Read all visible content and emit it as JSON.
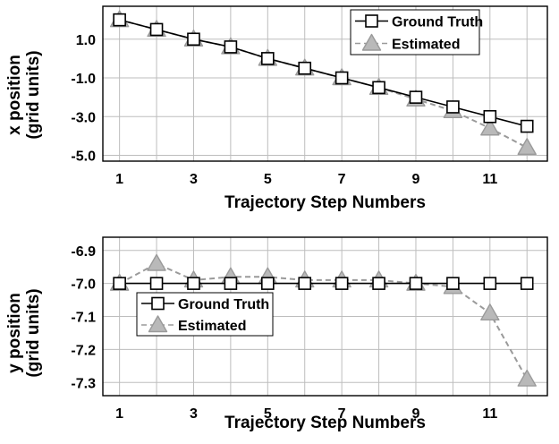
{
  "chart_data": [
    {
      "type": "line",
      "xlabel": "Trajectory Step Numbers",
      "ylabel": [
        "x position",
        "(grid units)"
      ],
      "x": [
        1,
        2,
        3,
        4,
        5,
        6,
        7,
        8,
        9,
        10,
        11,
        12
      ],
      "xticks": [
        "1",
        "3",
        "5",
        "7",
        "9",
        "11"
      ],
      "yticks": [
        "1.0",
        "-1.0",
        "-3.0",
        "-5.0"
      ],
      "ylim": [
        -5.3,
        2.7
      ],
      "xlim": [
        0.55,
        12.55
      ],
      "grid": true,
      "legend_position": "top-right",
      "series": [
        {
          "name": "Ground Truth",
          "color": "#000000",
          "marker": "square",
          "line": "solid",
          "values": [
            2.0,
            1.5,
            1.0,
            0.6,
            0.0,
            -0.5,
            -1.0,
            -1.5,
            -2.0,
            -2.5,
            -3.0,
            -3.5
          ]
        },
        {
          "name": "Estimated",
          "color": "#9a9a9a",
          "marker": "triangle",
          "line": "dashed",
          "values": [
            2.0,
            1.5,
            1.0,
            0.6,
            0.0,
            -0.5,
            -1.0,
            -1.5,
            -2.1,
            -2.7,
            -3.6,
            -4.6
          ]
        }
      ]
    },
    {
      "type": "line",
      "xlabel": "Trajectory Step Numbers",
      "ylabel": [
        "y position",
        "(grid units)"
      ],
      "x": [
        1,
        2,
        3,
        4,
        5,
        6,
        7,
        8,
        9,
        10,
        11,
        12
      ],
      "xticks": [
        "1",
        "3",
        "5",
        "7",
        "9",
        "11"
      ],
      "yticks": [
        "-6.9",
        "-7.0",
        "-7.1",
        "-7.2",
        "-7.3"
      ],
      "ylim": [
        -7.34,
        -6.86
      ],
      "xlim": [
        0.55,
        12.55
      ],
      "grid": true,
      "legend_position": "center-left",
      "series": [
        {
          "name": "Ground Truth",
          "color": "#000000",
          "marker": "square",
          "line": "solid",
          "values": [
            -7.0,
            -7.0,
            -7.0,
            -7.0,
            -7.0,
            -7.0,
            -7.0,
            -7.0,
            -7.0,
            -7.0,
            -7.0,
            -7.0
          ]
        },
        {
          "name": "Estimated",
          "color": "#9a9a9a",
          "marker": "triangle",
          "line": "dashed",
          "values": [
            -7.0,
            -6.94,
            -6.99,
            -6.98,
            -6.98,
            -6.99,
            -6.99,
            -6.99,
            -7.0,
            -7.01,
            -7.09,
            -7.29
          ]
        }
      ]
    }
  ]
}
